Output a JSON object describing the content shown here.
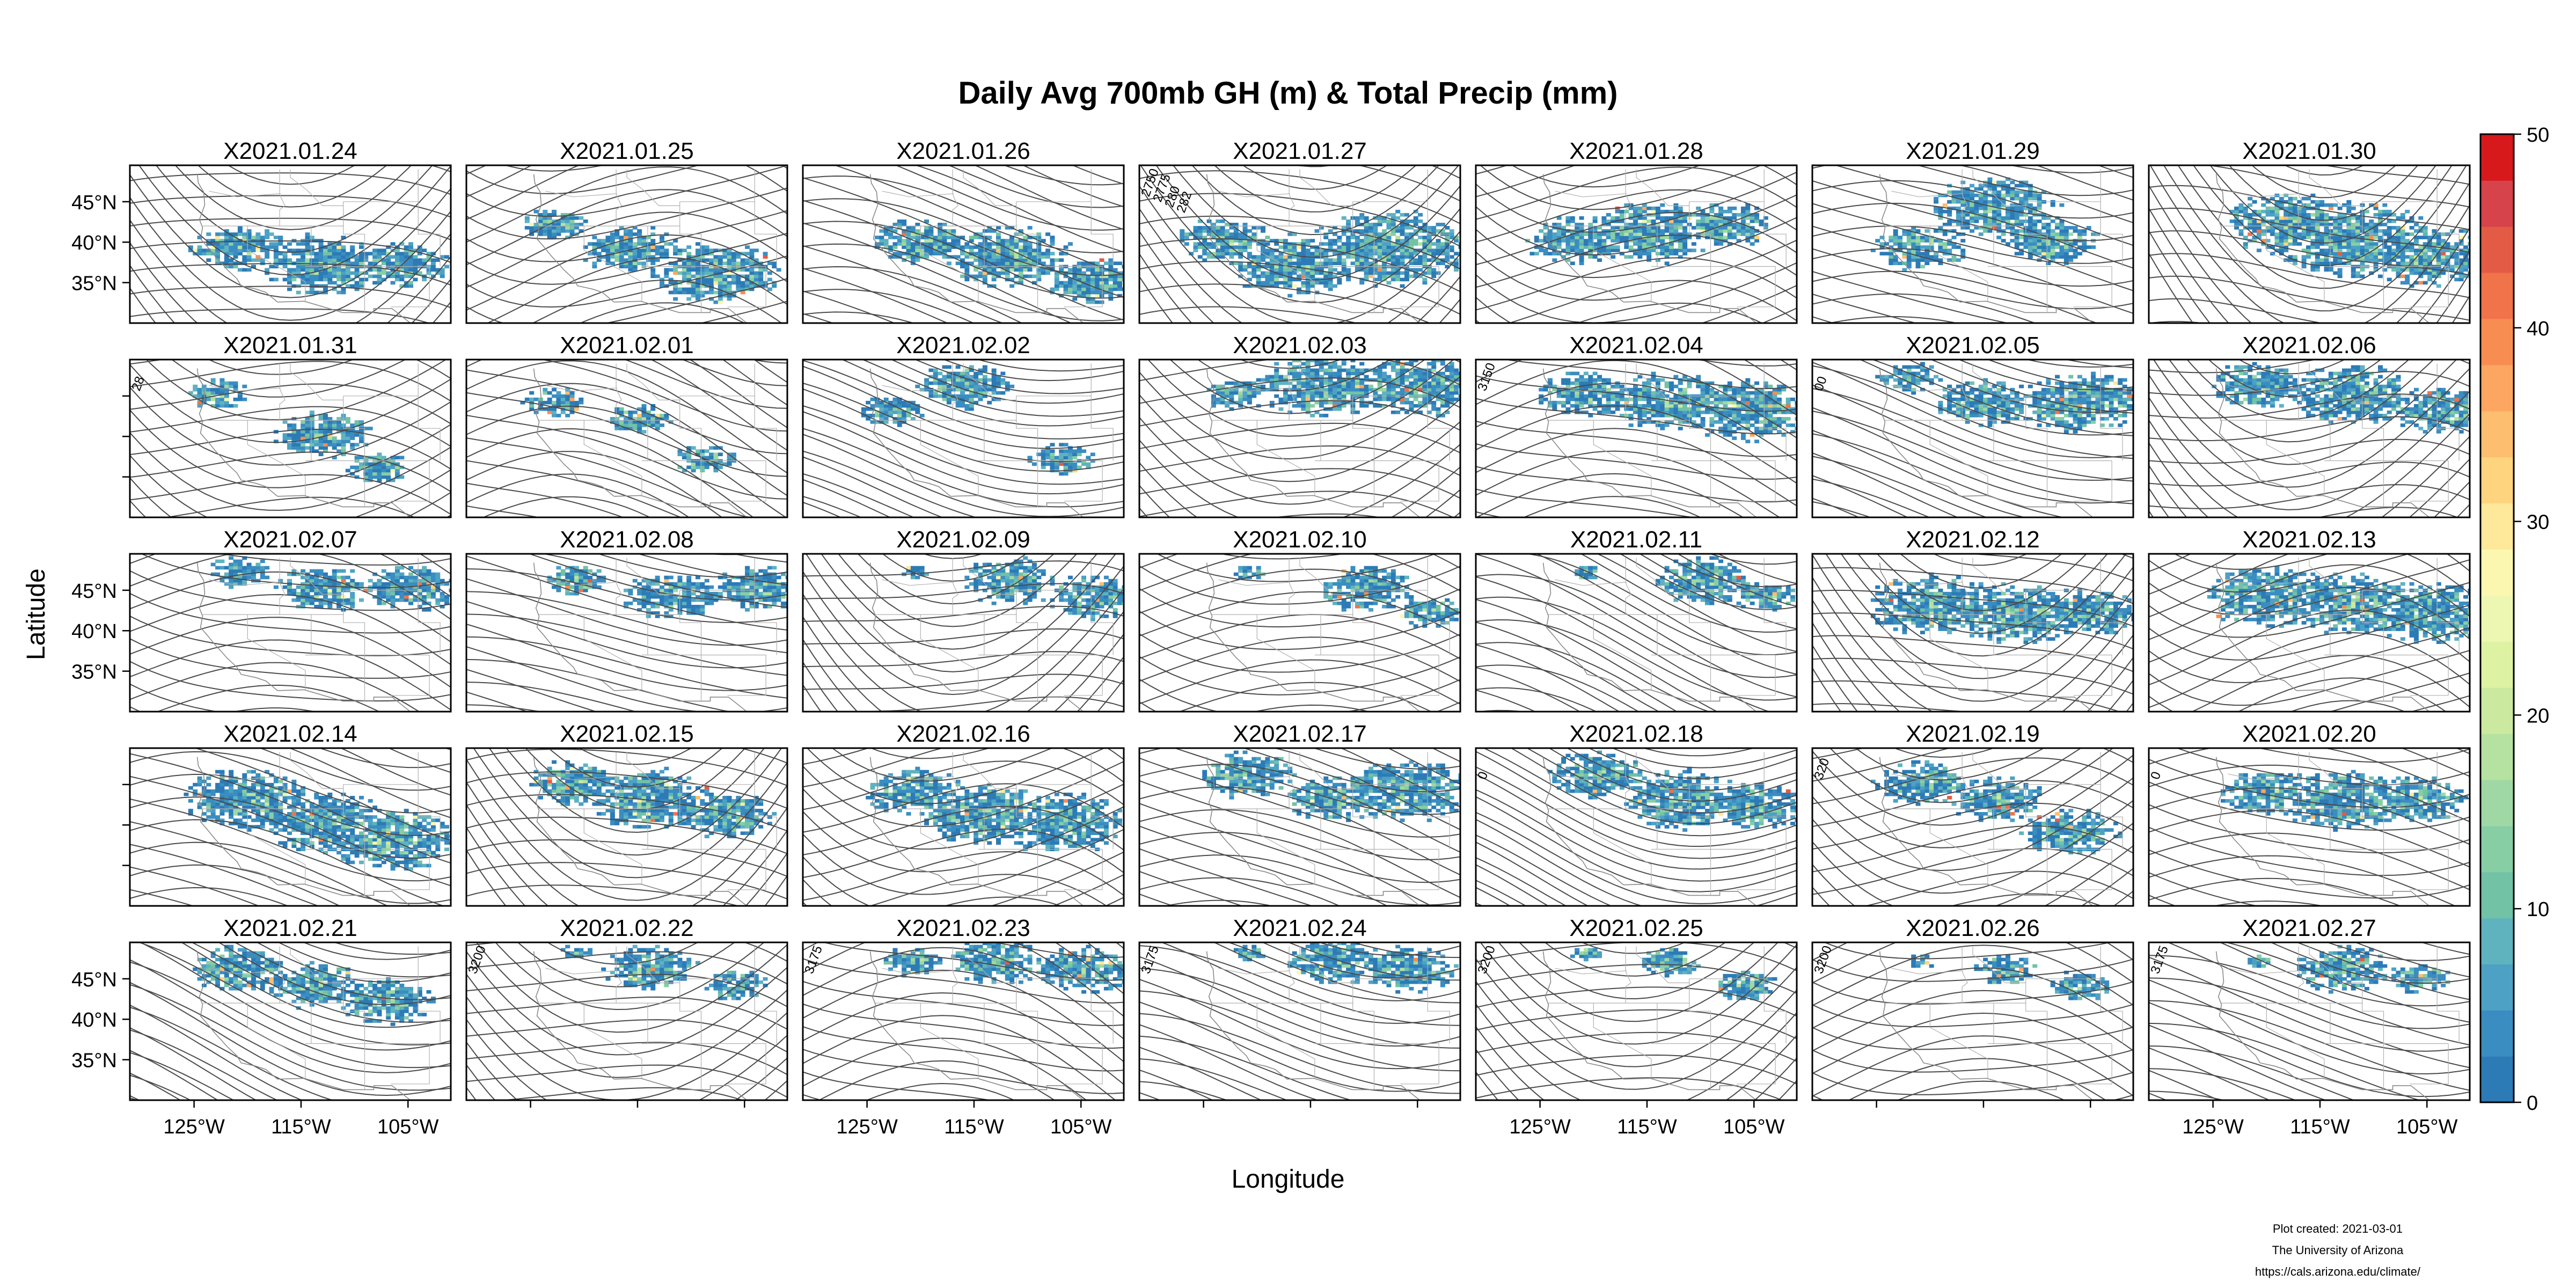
{
  "title": "Daily Avg 700mb GH (m) & Total Precip (mm)",
  "axes": {
    "xlabel": "Longitude",
    "ylabel": "Latitude",
    "lat_ticks": [
      "45°N",
      "40°N",
      "35°N"
    ],
    "lon_ticks": [
      "125°W",
      "115°W",
      "105°W"
    ]
  },
  "panels": [
    {
      "date": "X2021.01.24",
      "contour_labels": []
    },
    {
      "date": "X2021.01.25",
      "contour_labels": []
    },
    {
      "date": "X2021.01.26",
      "contour_labels": []
    },
    {
      "date": "X2021.01.27",
      "contour_labels": [
        "2750",
        "2775",
        "280",
        "282"
      ]
    },
    {
      "date": "X2021.01.28",
      "contour_labels": []
    },
    {
      "date": "X2021.01.29",
      "contour_labels": []
    },
    {
      "date": "X2021.01.30",
      "contour_labels": []
    },
    {
      "date": "X2021.01.31",
      "contour_labels": [
        "28"
      ]
    },
    {
      "date": "X2021.02.01",
      "contour_labels": []
    },
    {
      "date": "X2021.02.02",
      "contour_labels": []
    },
    {
      "date": "X2021.02.03",
      "contour_labels": []
    },
    {
      "date": "X2021.02.04",
      "contour_labels": [
        "3150"
      ]
    },
    {
      "date": "X2021.02.05",
      "contour_labels": [
        "00"
      ]
    },
    {
      "date": "X2021.02.06",
      "contour_labels": []
    },
    {
      "date": "X2021.02.07",
      "contour_labels": []
    },
    {
      "date": "X2021.02.08",
      "contour_labels": []
    },
    {
      "date": "X2021.02.09",
      "contour_labels": []
    },
    {
      "date": "X2021.02.10",
      "contour_labels": []
    },
    {
      "date": "X2021.02.11",
      "contour_labels": []
    },
    {
      "date": "X2021.02.12",
      "contour_labels": []
    },
    {
      "date": "X2021.02.13",
      "contour_labels": []
    },
    {
      "date": "X2021.02.14",
      "contour_labels": []
    },
    {
      "date": "X2021.02.15",
      "contour_labels": []
    },
    {
      "date": "X2021.02.16",
      "contour_labels": []
    },
    {
      "date": "X2021.02.17",
      "contour_labels": []
    },
    {
      "date": "X2021.02.18",
      "contour_labels": [
        "0"
      ]
    },
    {
      "date": "X2021.02.19",
      "contour_labels": [
        "320"
      ]
    },
    {
      "date": "X2021.02.20",
      "contour_labels": [
        "0"
      ]
    },
    {
      "date": "X2021.02.21",
      "contour_labels": []
    },
    {
      "date": "X2021.02.22",
      "contour_labels": [
        "3200"
      ]
    },
    {
      "date": "X2021.02.23",
      "contour_labels": [
        "3175"
      ]
    },
    {
      "date": "X2021.02.24",
      "contour_labels": [
        "3175"
      ]
    },
    {
      "date": "X2021.02.25",
      "contour_labels": [
        "3200"
      ]
    },
    {
      "date": "X2021.02.26",
      "contour_labels": [
        "3200"
      ]
    },
    {
      "date": "X2021.02.27",
      "contour_labels": [
        "3175"
      ]
    }
  ],
  "colorbar": {
    "ticks": [
      "0",
      "10",
      "20",
      "30",
      "40",
      "50"
    ],
    "min": 0,
    "max": 50,
    "colors": [
      "#2c7bb6",
      "#3a8dc0",
      "#4da1c4",
      "#5fb3bf",
      "#72c2a6",
      "#87cea5",
      "#9fd8a4",
      "#b6e2a1",
      "#cbea9f",
      "#def2a4",
      "#eef7b2",
      "#fbf7b0",
      "#fee89a",
      "#fed47f",
      "#fdbe6f",
      "#fca661",
      "#f88d52",
      "#f07349",
      "#e45b45",
      "#d7434a",
      "#d7191c"
    ]
  },
  "credits": [
    "Plot created: 2021-03-01",
    "The University of Arizona",
    "https://cals.arizona.edu/climate/"
  ]
}
